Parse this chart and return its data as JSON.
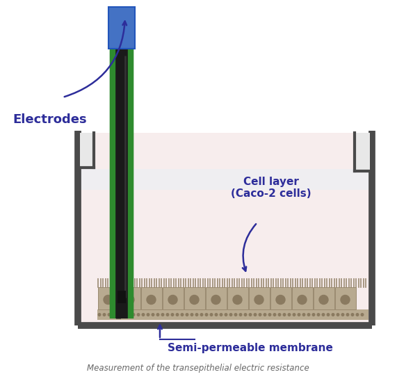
{
  "bg_color": "#ffffff",
  "well_fill_color": "#f7eded",
  "well_border_color": "#4a4a4a",
  "cell_color": "#b8aa90",
  "cell_nucleus_color": "#8a7a60",
  "spike_color": "#9a8a72",
  "electrode_blue_color": "#4472c4",
  "electrode_green_color": "#2e8b2e",
  "electrode_black_color": "#1a1a1a",
  "electrode_gray_color": "#a0a0a0",
  "label_color": "#2d2d9a",
  "caption_color": "#666666",
  "water_color": "#e8f0f5",
  "title": "Measurement of the transepithelial electric resistance",
  "label_electrodes": "Electrodes",
  "label_cell_layer": "Cell layer\n(Caco-2 cells)",
  "label_membrane": "Semi-permeable membrane"
}
